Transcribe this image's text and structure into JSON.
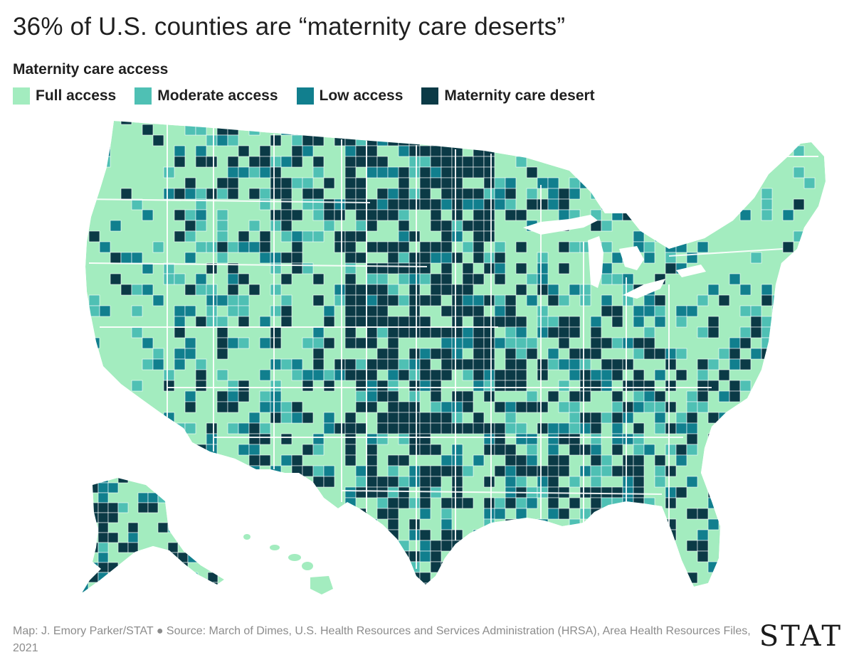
{
  "title": "36% of U.S. counties are “maternity care deserts”",
  "legend": {
    "title": "Maternity care access",
    "items": [
      {
        "label": "Full access",
        "color": "#a3ecbf"
      },
      {
        "label": "Moderate access",
        "color": "#4fc0b4"
      },
      {
        "label": "Low access",
        "color": "#117f8e"
      },
      {
        "label": "Maternity care desert",
        "color": "#0b3a46"
      }
    ]
  },
  "source": "Map: J. Emory Parker/STAT ● Source: March of Dimes, U.S. Health Resources and Services Administration (HRSA), Area Health Resources Files, 2021",
  "logo": "STAT",
  "colors": {
    "border": "#ffffff",
    "lakes": "#ffffff"
  }
}
